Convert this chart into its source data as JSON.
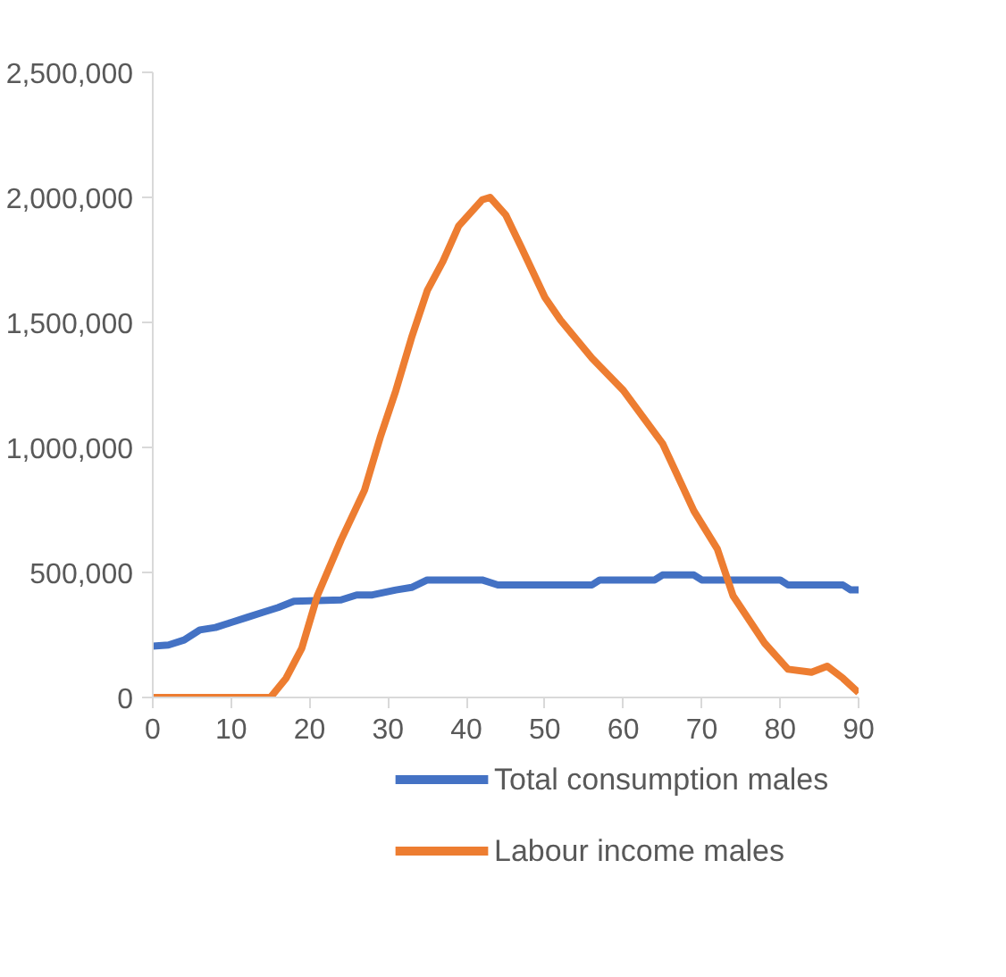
{
  "chart_data": {
    "type": "line",
    "xlim": [
      0,
      90
    ],
    "ylim": [
      0,
      2500000
    ],
    "xticks": [
      0,
      10,
      20,
      30,
      40,
      50,
      60,
      70,
      80,
      90
    ],
    "yticks": [
      {
        "value": 0,
        "label": "0"
      },
      {
        "value": 500000,
        "label": "500,000"
      },
      {
        "value": 1000000,
        "label": "1,000,000"
      },
      {
        "value": 1500000,
        "label": "1,500,000"
      },
      {
        "value": 2000000,
        "label": "2,000,000"
      },
      {
        "value": 2500000,
        "label": "2,500,000"
      }
    ],
    "grid": false,
    "legend": "bottom",
    "line_style": "solid",
    "marker": "none",
    "series": [
      {
        "name": "Total consumption males",
        "color": "#4472c4",
        "x": [
          0,
          2,
          4,
          6,
          8,
          10,
          12,
          14,
          16,
          18,
          24,
          26,
          28,
          31,
          33,
          35,
          42,
          44,
          56,
          57,
          64,
          65,
          69,
          70,
          80,
          81,
          88,
          89,
          90
        ],
        "values": [
          205000,
          210000,
          230000,
          270000,
          280000,
          300000,
          320000,
          340000,
          360000,
          385000,
          390000,
          410000,
          410000,
          430000,
          440000,
          470000,
          470000,
          450000,
          450000,
          470000,
          470000,
          490000,
          490000,
          470000,
          470000,
          450000,
          450000,
          430000,
          430000
        ]
      },
      {
        "name": "Labour income males",
        "color": "#ed7d31",
        "x": [
          0,
          15,
          17,
          19,
          21,
          24,
          27,
          29,
          31,
          33,
          35,
          37,
          39,
          42,
          43,
          45,
          47,
          50,
          52,
          56,
          60,
          65,
          69,
          72,
          74,
          78,
          81,
          84,
          86,
          88,
          90
        ],
        "values": [
          0,
          0,
          77000,
          197000,
          408000,
          629000,
          829000,
          1040000,
          1228000,
          1439000,
          1627000,
          1744000,
          1885000,
          1990000,
          2000000,
          1930000,
          1800000,
          1600000,
          1509000,
          1357000,
          1228000,
          1016000,
          746000,
          593000,
          406000,
          218000,
          113000,
          101000,
          125000,
          77000,
          19000
        ]
      }
    ]
  }
}
